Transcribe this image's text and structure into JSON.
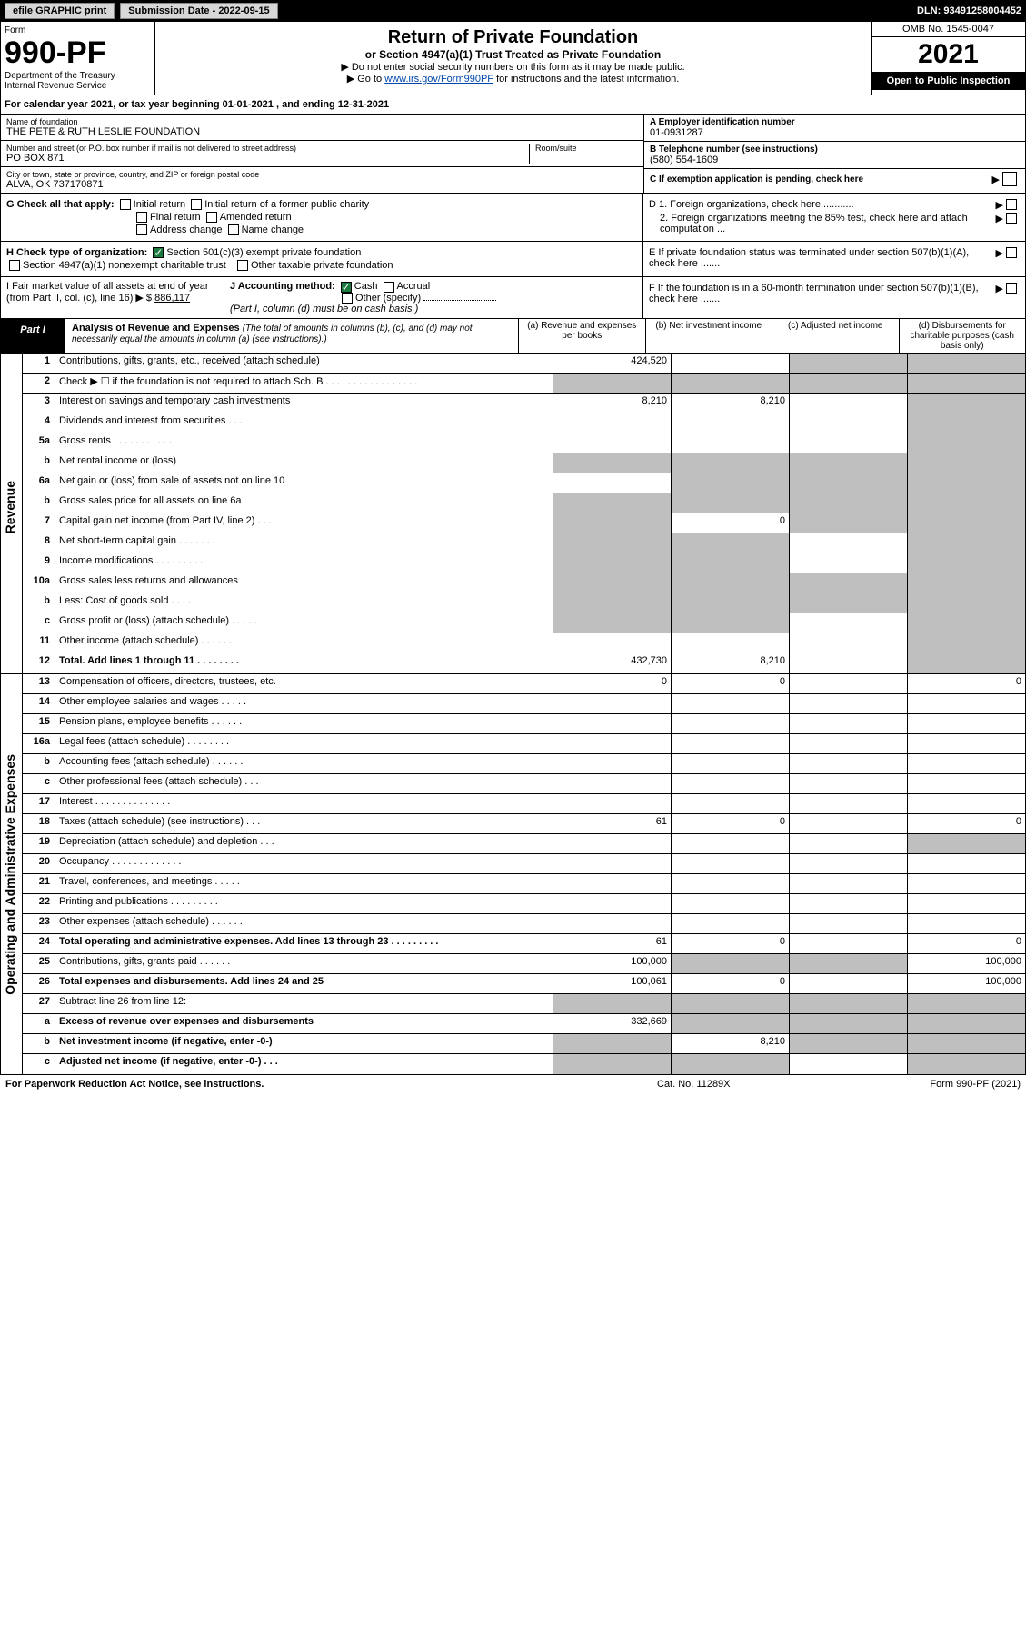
{
  "topbar": {
    "efile": "efile GRAPHIC print",
    "submission_label": "Submission Date - 2022-09-15",
    "dln": "DLN: 93491258004452"
  },
  "header": {
    "form_label": "Form",
    "form_number": "990-PF",
    "dept": "Department of the Treasury",
    "irs": "Internal Revenue Service",
    "title": "Return of Private Foundation",
    "subtitle": "or Section 4947(a)(1) Trust Treated as Private Foundation",
    "note1": "▶ Do not enter social security numbers on this form as it may be made public.",
    "note2_pre": "▶ Go to ",
    "note2_link": "www.irs.gov/Form990PF",
    "note2_post": " for instructions and the latest information.",
    "omb": "OMB No. 1545-0047",
    "year": "2021",
    "open": "Open to Public Inspection"
  },
  "cal": "For calendar year 2021, or tax year beginning 01-01-2021              , and ending 12-31-2021",
  "entity": {
    "name_lbl": "Name of foundation",
    "name": "THE PETE & RUTH LESLIE FOUNDATION",
    "addr_lbl": "Number and street (or P.O. box number if mail is not delivered to street address)",
    "addr": "PO BOX 871",
    "room_lbl": "Room/suite",
    "city_lbl": "City or town, state or province, country, and ZIP or foreign postal code",
    "city": "ALVA, OK  737170871",
    "ein_lbl": "A Employer identification number",
    "ein": "01-0931287",
    "tel_lbl": "B Telephone number (see instructions)",
    "tel": "(580) 554-1609",
    "c_lbl": "C If exemption application is pending, check here"
  },
  "g": {
    "label": "G Check all that apply:",
    "o1": "Initial return",
    "o2": "Initial return of a former public charity",
    "o3": "Final return",
    "o4": "Amended return",
    "o5": "Address change",
    "o6": "Name change"
  },
  "d": {
    "d1": "D 1. Foreign organizations, check here............",
    "d2": "2. Foreign organizations meeting the 85% test, check here and attach computation ...",
    "e": "E  If private foundation status was terminated under section 507(b)(1)(A), check here .......",
    "f": "F  If the foundation is in a 60-month termination under section 507(b)(1)(B), check here ......."
  },
  "h": {
    "label": "H Check type of organization:",
    "o1": "Section 501(c)(3) exempt private foundation",
    "o2": "Section 4947(a)(1) nonexempt charitable trust",
    "o3": "Other taxable private foundation"
  },
  "i": {
    "label": "I Fair market value of all assets at end of year (from Part II, col. (c), line 16) ▶ $",
    "value": "886,117"
  },
  "j": {
    "label": "J Accounting method:",
    "o1": "Cash",
    "o2": "Accrual",
    "o3": "Other (specify)",
    "note": "(Part I, column (d) must be on cash basis.)"
  },
  "partI": {
    "tag": "Part I",
    "title": "Analysis of Revenue and Expenses",
    "italic": " (The total of amounts in columns (b), (c), and (d) may not necessarily equal the amounts in column (a) (see instructions).)",
    "col_a": "(a)   Revenue and expenses per books",
    "col_b": "(b)   Net investment income",
    "col_c": "(c)   Adjusted net income",
    "col_d": "(d)   Disbursements for charitable purposes (cash basis only)"
  },
  "side_rev": "Revenue",
  "side_exp": "Operating and Administrative Expenses",
  "rows": [
    {
      "ln": "1",
      "desc": "Contributions, gifts, grants, etc., received (attach schedule)",
      "a": "424,520",
      "b": "",
      "c": "g",
      "d": "g"
    },
    {
      "ln": "2",
      "desc": "Check ▶ ☐ if the foundation is not required to attach Sch. B  .  .  .  .  .  .  .  .  .  .  .  .  .  .  .  .  .",
      "a": "g",
      "b": "g",
      "c": "g",
      "d": "g",
      "nob": true
    },
    {
      "ln": "3",
      "desc": "Interest on savings and temporary cash investments",
      "a": "8,210",
      "b": "8,210",
      "c": "",
      "d": "g"
    },
    {
      "ln": "4",
      "desc": "Dividends and interest from securities   .   .   .",
      "a": "",
      "b": "",
      "c": "",
      "d": "g"
    },
    {
      "ln": "5a",
      "desc": "Gross rents   .   .   .   .   .   .   .   .   .   .   .",
      "a": "",
      "b": "",
      "c": "",
      "d": "g"
    },
    {
      "ln": "b",
      "desc": "Net rental income or (loss)  ",
      "a": "g",
      "b": "g",
      "c": "g",
      "d": "g",
      "nob": true,
      "inline": true
    },
    {
      "ln": "6a",
      "desc": "Net gain or (loss) from sale of assets not on line 10",
      "a": "",
      "b": "g",
      "c": "g",
      "d": "g"
    },
    {
      "ln": "b",
      "desc": "Gross sales price for all assets on line 6a ",
      "a": "g",
      "b": "g",
      "c": "g",
      "d": "g",
      "nob": true,
      "inline": true
    },
    {
      "ln": "7",
      "desc": "Capital gain net income (from Part IV, line 2)   .   .   .",
      "a": "g",
      "b": "0",
      "c": "g",
      "d": "g"
    },
    {
      "ln": "8",
      "desc": "Net short-term capital gain   .   .   .   .   .   .   .",
      "a": "g",
      "b": "g",
      "c": "",
      "d": "g"
    },
    {
      "ln": "9",
      "desc": "Income modifications   .   .   .   .   .   .   .   .   .",
      "a": "g",
      "b": "g",
      "c": "",
      "d": "g"
    },
    {
      "ln": "10a",
      "desc": "Gross sales less returns and allowances",
      "a": "g",
      "b": "g",
      "c": "g",
      "d": "g",
      "nob": true,
      "inline": true
    },
    {
      "ln": "b",
      "desc": "Less: Cost of goods sold   .   .   .   .",
      "a": "g",
      "b": "g",
      "c": "g",
      "d": "g",
      "nob": true,
      "inline": true
    },
    {
      "ln": "c",
      "desc": "Gross profit or (loss) (attach schedule)   .   .   .   .   .",
      "a": "g",
      "b": "g",
      "c": "",
      "d": "g"
    },
    {
      "ln": "11",
      "desc": "Other income (attach schedule)   .   .   .   .   .   .",
      "a": "",
      "b": "",
      "c": "",
      "d": "g"
    },
    {
      "ln": "12",
      "desc": "Total. Add lines 1 through 11   .   .   .   .   .   .   .   .",
      "a": "432,730",
      "b": "8,210",
      "c": "",
      "d": "g",
      "bold": true
    }
  ],
  "exprows": [
    {
      "ln": "13",
      "desc": "Compensation of officers, directors, trustees, etc.",
      "a": "0",
      "b": "0",
      "c": "",
      "d": "0"
    },
    {
      "ln": "14",
      "desc": "Other employee salaries and wages   .   .   .   .   .",
      "a": "",
      "b": "",
      "c": "",
      "d": ""
    },
    {
      "ln": "15",
      "desc": "Pension plans, employee benefits   .   .   .   .   .   .",
      "a": "",
      "b": "",
      "c": "",
      "d": ""
    },
    {
      "ln": "16a",
      "desc": "Legal fees (attach schedule)   .   .   .   .   .   .   .   .",
      "a": "",
      "b": "",
      "c": "",
      "d": ""
    },
    {
      "ln": "b",
      "desc": "Accounting fees (attach schedule)   .   .   .   .   .   .",
      "a": "",
      "b": "",
      "c": "",
      "d": ""
    },
    {
      "ln": "c",
      "desc": "Other professional fees (attach schedule)   .   .   .",
      "a": "",
      "b": "",
      "c": "",
      "d": ""
    },
    {
      "ln": "17",
      "desc": "Interest   .   .   .   .   .   .   .   .   .   .   .   .   .   .",
      "a": "",
      "b": "",
      "c": "",
      "d": ""
    },
    {
      "ln": "18",
      "desc": "Taxes (attach schedule) (see instructions)   .   .   .",
      "a": "61",
      "b": "0",
      "c": "",
      "d": "0"
    },
    {
      "ln": "19",
      "desc": "Depreciation (attach schedule) and depletion   .   .   .",
      "a": "",
      "b": "",
      "c": "",
      "d": "g"
    },
    {
      "ln": "20",
      "desc": "Occupancy   .   .   .   .   .   .   .   .   .   .   .   .   .",
      "a": "",
      "b": "",
      "c": "",
      "d": ""
    },
    {
      "ln": "21",
      "desc": "Travel, conferences, and meetings   .   .   .   .   .   .",
      "a": "",
      "b": "",
      "c": "",
      "d": ""
    },
    {
      "ln": "22",
      "desc": "Printing and publications   .   .   .   .   .   .   .   .   .",
      "a": "",
      "b": "",
      "c": "",
      "d": ""
    },
    {
      "ln": "23",
      "desc": "Other expenses (attach schedule)   .   .   .   .   .   .",
      "a": "",
      "b": "",
      "c": "",
      "d": ""
    },
    {
      "ln": "24",
      "desc": "Total operating and administrative expenses. Add lines 13 through 23   .   .   .   .   .   .   .   .   .",
      "a": "61",
      "b": "0",
      "c": "",
      "d": "0",
      "bold": true
    },
    {
      "ln": "25",
      "desc": "Contributions, gifts, grants paid   .   .   .   .   .   .",
      "a": "100,000",
      "b": "g",
      "c": "g",
      "d": "100,000"
    },
    {
      "ln": "26",
      "desc": "Total expenses and disbursements. Add lines 24 and 25",
      "a": "100,061",
      "b": "0",
      "c": "",
      "d": "100,000",
      "bold": true
    },
    {
      "ln": "27",
      "desc": "Subtract line 26 from line 12:",
      "a": "g",
      "b": "g",
      "c": "g",
      "d": "g"
    },
    {
      "ln": "a",
      "desc": "Excess of revenue over expenses and disbursements",
      "a": "332,669",
      "b": "g",
      "c": "g",
      "d": "g",
      "bold": true
    },
    {
      "ln": "b",
      "desc": "Net investment income (if negative, enter -0-)",
      "a": "g",
      "b": "8,210",
      "c": "g",
      "d": "g",
      "bold": true
    },
    {
      "ln": "c",
      "desc": "Adjusted net income (if negative, enter -0-)   .   .   .",
      "a": "g",
      "b": "g",
      "c": "",
      "d": "g",
      "bold": true
    }
  ],
  "footer": {
    "left": "For Paperwork Reduction Act Notice, see instructions.",
    "mid": "Cat. No. 11289X",
    "right": "Form 990-PF (2021)"
  }
}
